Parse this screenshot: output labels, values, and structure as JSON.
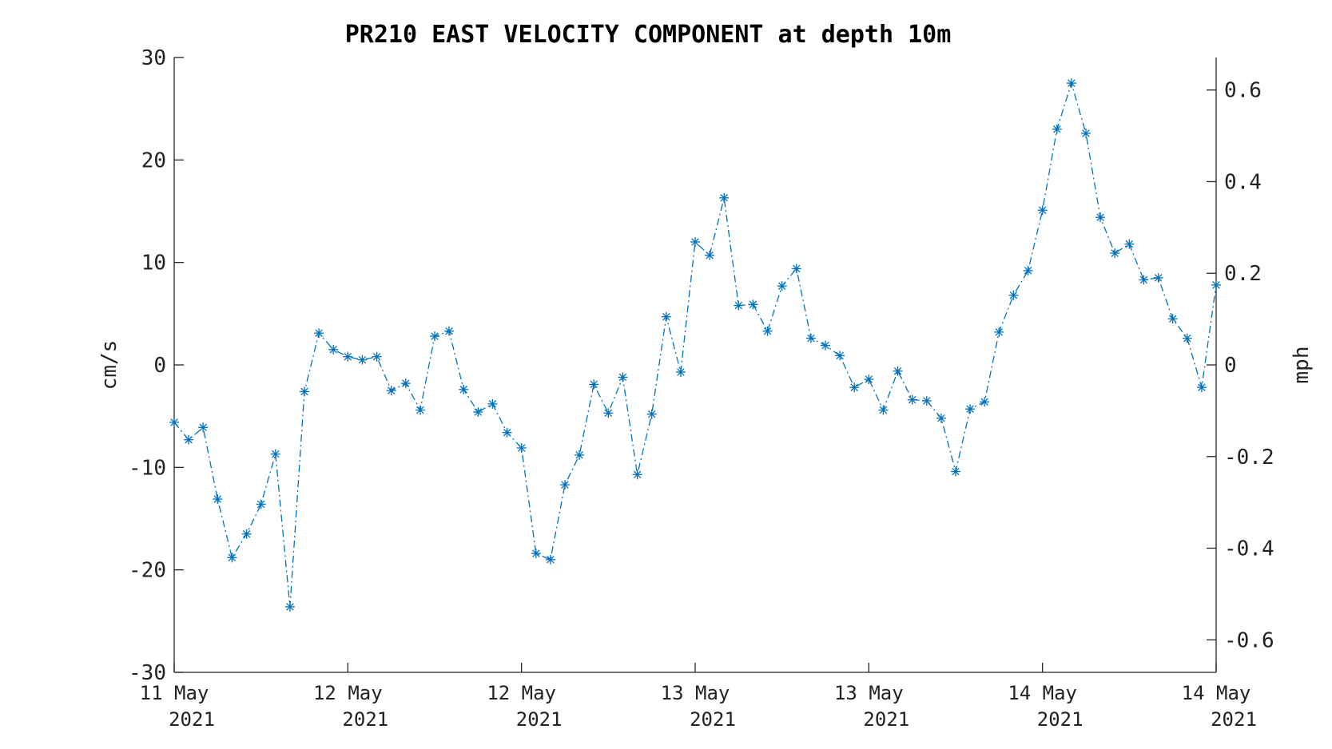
{
  "chart_data": {
    "type": "line",
    "title": "PR210 EAST VELOCITY COMPONENT at depth 10m",
    "ylabel_left": "cm/s",
    "ylabel_right": "mph",
    "ylim_left": [
      -30,
      30
    ],
    "ylim_right": [
      -0.671,
      0.671
    ],
    "left_ticks": [
      "30",
      "20",
      "10",
      "0",
      "-10",
      "-20",
      "-30"
    ],
    "right_ticks": [
      "0.6",
      "0.4",
      "0.2",
      "0",
      "-0.2",
      "-0.4",
      "-0.6"
    ],
    "x_tick_labels": [
      {
        "line1": "11 May",
        "line2": "2021"
      },
      {
        "line1": "12 May",
        "line2": "2021"
      },
      {
        "line1": "12 May",
        "line2": "2021"
      },
      {
        "line1": "13 May",
        "line2": "2021"
      },
      {
        "line1": "13 May",
        "line2": "2021"
      },
      {
        "line1": "14 May",
        "line2": "2021"
      },
      {
        "line1": "14 May",
        "line2": "2021"
      }
    ],
    "x_start": "11 May 2021",
    "x_end": "14 May 2021",
    "grid": false,
    "legend": "none",
    "series": [
      {
        "color": "#0072BD",
        "marker": "asterisk",
        "line_style": "dash-dot",
        "values": [
          -5.6,
          -7.3,
          -6.1,
          -13.1,
          -18.8,
          -16.5,
          -13.6,
          -8.7,
          -23.6,
          -2.6,
          3.1,
          1.5,
          0.8,
          0.5,
          0.8,
          -2.5,
          -1.8,
          -4.4,
          2.8,
          3.3,
          -2.4,
          -4.6,
          -3.8,
          -6.6,
          -8.1,
          -18.4,
          -19.0,
          -11.7,
          -8.8,
          -1.9,
          -4.7,
          -1.2,
          -10.7,
          -4.8,
          4.7,
          -0.7,
          12.0,
          10.7,
          16.3,
          5.8,
          5.9,
          3.3,
          7.7,
          9.4,
          2.6,
          1.9,
          0.9,
          -2.2,
          -1.4,
          -4.4,
          -0.6,
          -3.4,
          -3.5,
          -5.2,
          -10.4,
          -4.3,
          -3.6,
          3.2,
          6.8,
          9.2,
          15.1,
          23.0,
          27.5,
          22.6,
          14.4,
          10.9,
          11.8,
          8.3,
          8.5,
          4.5,
          2.6,
          -2.2,
          7.8
        ]
      }
    ]
  }
}
